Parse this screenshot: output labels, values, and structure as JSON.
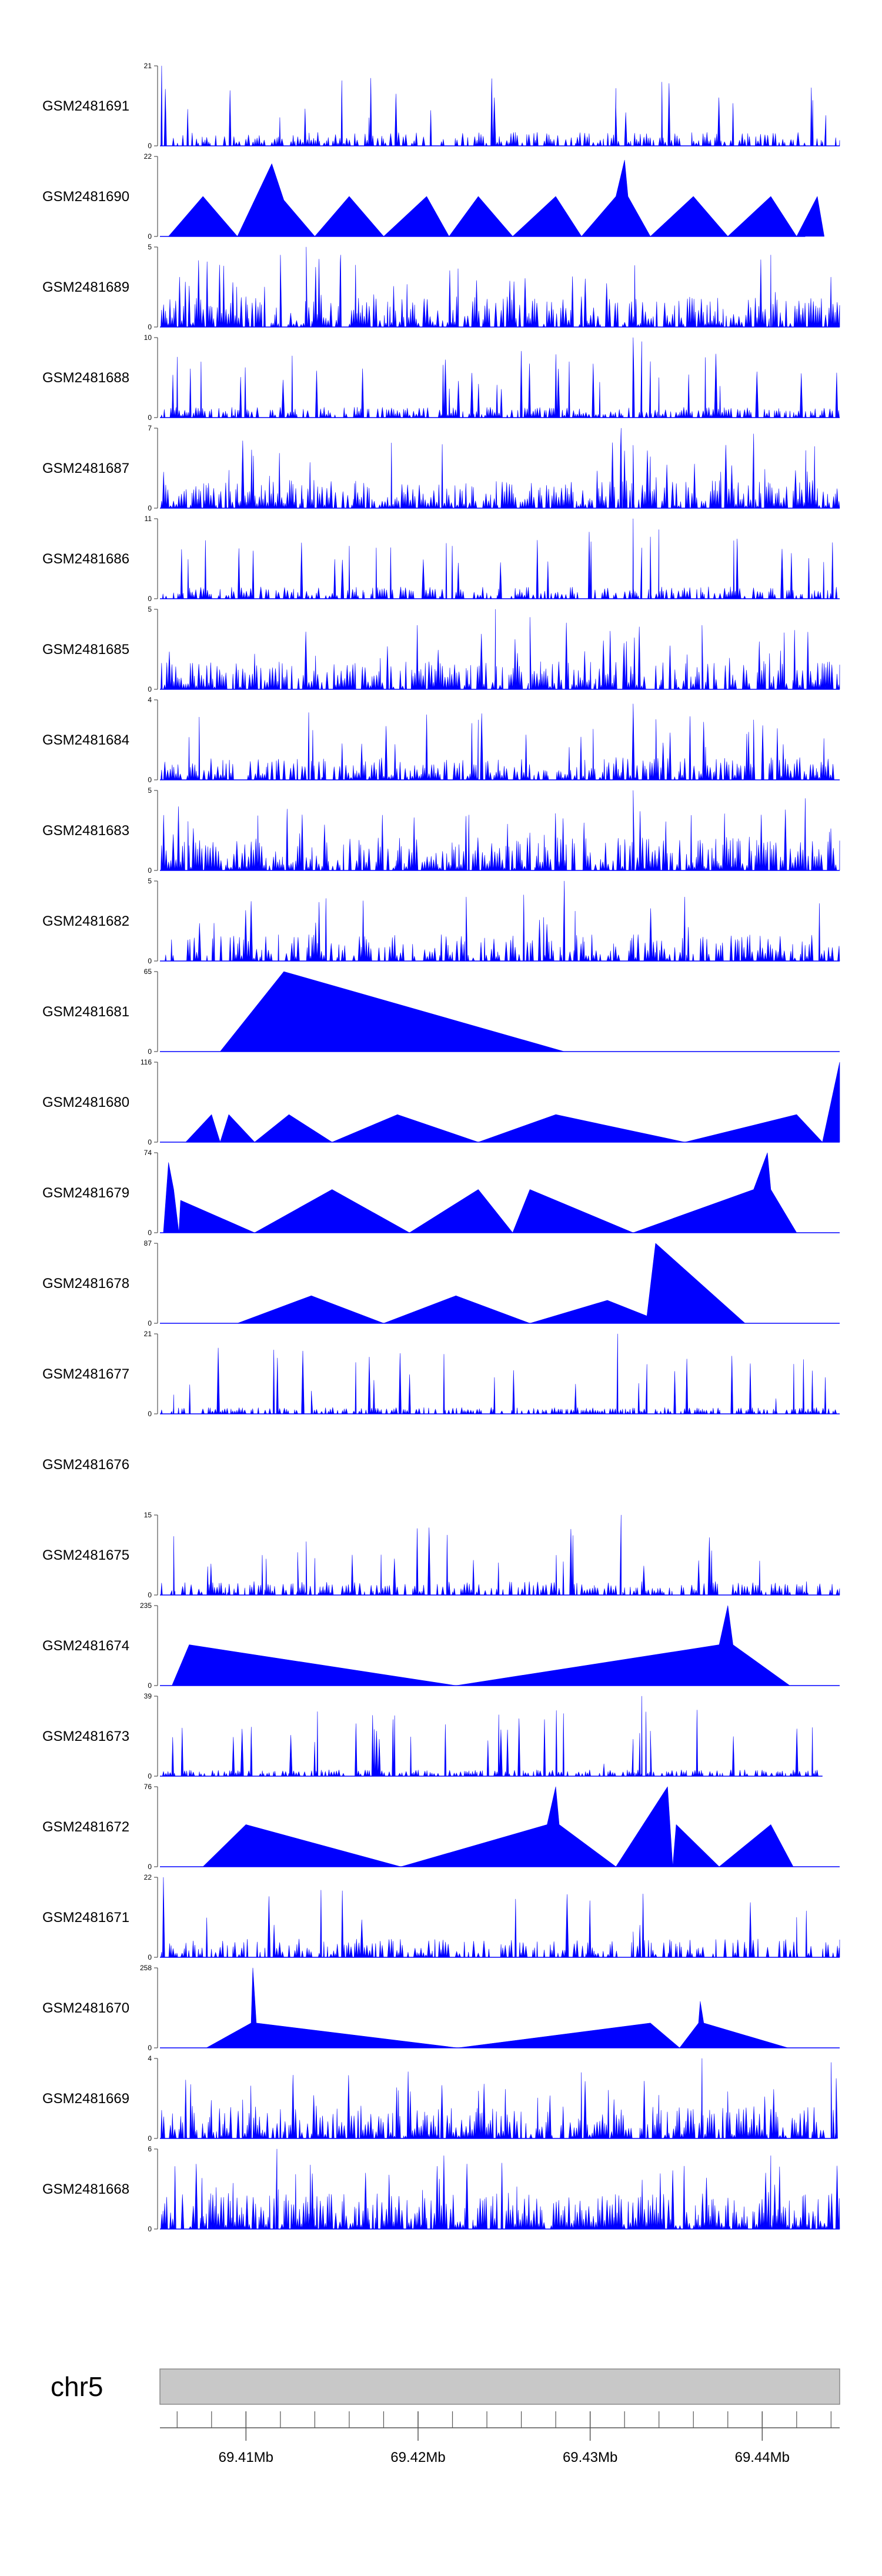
{
  "colors": {
    "signal": "#0000ff",
    "axis": "#555555",
    "ideogram": "#c8c8c8",
    "ideogram_border": "#8a8a8a"
  },
  "chart_data": {
    "type": "area",
    "chromosome": "chr5",
    "x_range_mb": [
      69.405,
      69.4445
    ],
    "x_ticks": [
      {
        "value": 69.41,
        "label": "69.41Mb"
      },
      {
        "value": 69.42,
        "label": "69.42Mb"
      },
      {
        "value": 69.43,
        "label": "69.43Mb"
      },
      {
        "value": 69.44,
        "label": "69.44Mb"
      }
    ],
    "tracks": [
      {
        "name": "GSM2481691",
        "ymax": 21,
        "ylabel_top": "21",
        "ylabel_bottom": "0",
        "style": "dense",
        "seed": 11,
        "peaks": [
          [
            69.4051,
            21
          ],
          [
            69.4315,
            10
          ],
          [
            69.4437,
            8
          ]
        ],
        "base": 0.14,
        "gap": 0.4
      },
      {
        "name": "GSM2481690",
        "ymax": 22,
        "ylabel_top": "22",
        "ylabel_bottom": "0",
        "style": "sparse",
        "points": [
          [
            69.4055,
            0
          ],
          [
            69.4075,
            11
          ],
          [
            69.4095,
            0
          ],
          [
            69.4115,
            20
          ],
          [
            69.4122,
            10
          ],
          [
            69.414,
            0
          ],
          [
            69.416,
            11
          ],
          [
            69.418,
            0
          ],
          [
            69.4205,
            11
          ],
          [
            69.4218,
            0
          ],
          [
            69.4235,
            11
          ],
          [
            69.4255,
            0
          ],
          [
            69.428,
            11
          ],
          [
            69.4295,
            0
          ],
          [
            69.4315,
            11
          ],
          [
            69.432,
            21
          ],
          [
            69.4322,
            11
          ],
          [
            69.4335,
            0
          ],
          [
            69.436,
            11
          ],
          [
            69.438,
            0
          ],
          [
            69.4405,
            11
          ],
          [
            69.442,
            0
          ],
          [
            69.4432,
            11
          ],
          [
            69.4436,
            0
          ]
        ],
        "end": 69.4425
      },
      {
        "name": "GSM2481689",
        "ymax": 5,
        "ylabel_top": "5",
        "ylabel_bottom": "0",
        "style": "dense",
        "seed": 23,
        "peaks": [
          [
            69.4135,
            5
          ],
          [
            69.412,
            4.5
          ],
          [
            69.4155,
            4.5
          ],
          [
            69.4405,
            4.5
          ]
        ],
        "base": 0.35,
        "gap": 0.2
      },
      {
        "name": "GSM2481688",
        "ymax": 10,
        "ylabel_top": "10",
        "ylabel_bottom": "0",
        "style": "dense",
        "seed": 37,
        "peaks": [
          [
            69.4325,
            10
          ],
          [
            69.433,
            9.5
          ],
          [
            69.4335,
            7
          ],
          [
            69.434,
            5
          ]
        ],
        "base": 0.1,
        "gap": 0.35
      },
      {
        "name": "GSM2481687",
        "ymax": 7,
        "ylabel_top": "7",
        "ylabel_bottom": "0",
        "style": "dense",
        "seed": 41,
        "peaks": [
          [
            69.4318,
            7
          ],
          [
            69.4395,
            6.5
          ],
          [
            69.4325,
            5.5
          ],
          [
            69.4335,
            4.5
          ]
        ],
        "base": 0.32,
        "gap": 0.2
      },
      {
        "name": "GSM2481686",
        "ymax": 11,
        "ylabel_top": "11",
        "ylabel_bottom": "0",
        "style": "dense",
        "seed": 53,
        "peaks": [
          [
            69.4325,
            11
          ],
          [
            69.4335,
            8.5
          ],
          [
            69.434,
            9.5
          ],
          [
            69.433,
            7
          ]
        ],
        "base": 0.12,
        "gap": 0.35
      },
      {
        "name": "GSM2481685",
        "ymax": 5,
        "ylabel_top": "5",
        "ylabel_bottom": "0",
        "style": "dense",
        "seed": 61,
        "peaks": [
          [
            69.4245,
            5
          ],
          [
            69.4265,
            4.5
          ],
          [
            69.4365,
            4
          ]
        ],
        "base": 0.32,
        "gap": 0.25
      },
      {
        "name": "GSM2481684",
        "ymax": 4,
        "ylabel_top": "4",
        "ylabel_bottom": "0",
        "style": "dense",
        "seed": 73,
        "peaks": [
          [
            69.4235,
            3
          ],
          [
            69.4325,
            3.8
          ],
          [
            69.4395,
            3
          ]
        ],
        "base": 0.25,
        "gap": 0.3
      },
      {
        "name": "GSM2481683",
        "ymax": 5,
        "ylabel_top": "5",
        "ylabel_bottom": "0",
        "style": "dense",
        "seed": 83,
        "peaks": [
          [
            69.4325,
            5
          ],
          [
            69.4425,
            4.5
          ]
        ],
        "base": 0.38,
        "gap": 0.2
      },
      {
        "name": "GSM2481682",
        "ymax": 5,
        "ylabel_top": "5",
        "ylabel_bottom": "0",
        "style": "dense",
        "seed": 97,
        "peaks": [
          [
            69.4285,
            5
          ],
          [
            69.4228,
            4
          ],
          [
            69.4355,
            4
          ]
        ],
        "base": 0.3,
        "gap": 0.3
      },
      {
        "name": "GSM2481681",
        "ymax": 65,
        "ylabel_top": "65",
        "ylabel_bottom": "0",
        "style": "sparse",
        "points": [
          [
            69.4085,
            0
          ],
          [
            69.4122,
            65
          ],
          [
            69.4285,
            0
          ]
        ]
      },
      {
        "name": "GSM2481680",
        "ymax": 116,
        "ylabel_top": "116",
        "ylabel_bottom": "0",
        "style": "sparse",
        "points": [
          [
            69.4065,
            0
          ],
          [
            69.408,
            40
          ],
          [
            69.4085,
            0
          ],
          [
            69.409,
            40
          ],
          [
            69.4105,
            0
          ],
          [
            69.4125,
            40
          ],
          [
            69.415,
            0
          ],
          [
            69.4188,
            40
          ],
          [
            69.4235,
            0
          ],
          [
            69.428,
            40
          ],
          [
            69.4355,
            0
          ],
          [
            69.442,
            40
          ],
          [
            69.4435,
            0
          ],
          [
            69.4445,
            116
          ]
        ]
      },
      {
        "name": "GSM2481679",
        "ymax": 74,
        "ylabel_top": "74",
        "ylabel_bottom": "0",
        "style": "sparse",
        "points": [
          [
            69.4052,
            0
          ],
          [
            69.4055,
            65
          ],
          [
            69.4058,
            40
          ],
          [
            69.4061,
            0
          ],
          [
            69.4062,
            30
          ],
          [
            69.4105,
            0
          ],
          [
            69.415,
            40
          ],
          [
            69.4195,
            0
          ],
          [
            69.4235,
            40
          ],
          [
            69.4255,
            0
          ],
          [
            69.4265,
            40
          ],
          [
            69.4325,
            0
          ],
          [
            69.4395,
            40
          ],
          [
            69.4403,
            74
          ],
          [
            69.4405,
            40
          ],
          [
            69.442,
            0
          ]
        ]
      },
      {
        "name": "GSM2481678",
        "ymax": 87,
        "ylabel_top": "87",
        "ylabel_bottom": "0",
        "style": "sparse",
        "points": [
          [
            69.4095,
            0
          ],
          [
            69.4138,
            30
          ],
          [
            69.418,
            0
          ],
          [
            69.4222,
            30
          ],
          [
            69.4265,
            0
          ],
          [
            69.431,
            25
          ],
          [
            69.4333,
            8
          ],
          [
            69.4338,
            87
          ],
          [
            69.439,
            0
          ]
        ]
      },
      {
        "name": "GSM2481677",
        "ymax": 21,
        "ylabel_top": "21",
        "ylabel_bottom": "0",
        "style": "dense",
        "seed": 101,
        "peaks": [
          [
            69.4316,
            21
          ],
          [
            69.4333,
            13
          ],
          [
            69.4058,
            5
          ],
          [
            69.4138,
            6
          ],
          [
            69.4408,
            4
          ]
        ],
        "base": 0.05,
        "gap": 0.4
      },
      {
        "name": "GSM2481676",
        "style": "empty"
      },
      {
        "name": "GSM2481675",
        "ymax": 15,
        "ylabel_top": "15",
        "ylabel_bottom": "0",
        "style": "dense",
        "seed": 113,
        "peaks": [
          [
            69.4318,
            15
          ],
          [
            69.4058,
            11
          ],
          [
            69.4135,
            10
          ],
          [
            69.413,
            8
          ]
        ],
        "base": 0.14,
        "gap": 0.4
      },
      {
        "name": "GSM2481674",
        "ymax": 235,
        "ylabel_top": "235",
        "ylabel_bottom": "0",
        "style": "sparse",
        "points": [
          [
            69.4057,
            0
          ],
          [
            69.4067,
            120
          ],
          [
            69.4222,
            0
          ],
          [
            69.4375,
            120
          ],
          [
            69.438,
            235
          ],
          [
            69.4383,
            120
          ],
          [
            69.4416,
            0
          ]
        ]
      },
      {
        "name": "GSM2481673",
        "ymax": 39,
        "ylabel_top": "39",
        "ylabel_bottom": "0",
        "style": "dense",
        "seed": 131,
        "peaks": [
          [
            69.433,
            39
          ],
          [
            69.4325,
            18
          ],
          [
            69.4335,
            22
          ],
          [
            69.4308,
            6
          ]
        ],
        "base": 0.05,
        "gap": 0.4,
        "end": 69.4435
      },
      {
        "name": "GSM2481672",
        "ymax": 76,
        "ylabel_top": "76",
        "ylabel_bottom": "0",
        "style": "sparse",
        "points": [
          [
            69.4075,
            0
          ],
          [
            69.41,
            40
          ],
          [
            69.419,
            0
          ],
          [
            69.4275,
            40
          ],
          [
            69.428,
            76
          ],
          [
            69.4282,
            40
          ],
          [
            69.4315,
            0
          ],
          [
            69.4345,
            76
          ],
          [
            69.4348,
            0
          ],
          [
            69.435,
            40
          ],
          [
            69.4375,
            0
          ],
          [
            69.4405,
            40
          ],
          [
            69.4418,
            0
          ]
        ]
      },
      {
        "name": "GSM2481671",
        "ymax": 22,
        "ylabel_top": "22",
        "ylabel_bottom": "0",
        "style": "dense",
        "seed": 149,
        "peaks": [
          [
            69.4052,
            22
          ],
          [
            69.442,
            11
          ],
          [
            69.4325,
            7
          ]
        ],
        "base": 0.2,
        "gap": 0.45
      },
      {
        "name": "GSM2481670",
        "ymax": 258,
        "ylabel_top": "258",
        "ylabel_bottom": "0",
        "style": "sparse",
        "points": [
          [
            69.4077,
            0
          ],
          [
            69.4103,
            80
          ],
          [
            69.4104,
            258
          ],
          [
            69.4106,
            80
          ],
          [
            69.4223,
            0
          ],
          [
            69.4335,
            80
          ],
          [
            69.4352,
            0
          ],
          [
            69.4363,
            80
          ],
          [
            69.4364,
            150
          ],
          [
            69.4366,
            80
          ],
          [
            69.4415,
            0
          ]
        ]
      },
      {
        "name": "GSM2481669",
        "ymax": 4,
        "ylabel_top": "4",
        "ylabel_bottom": "0",
        "style": "dense",
        "seed": 167,
        "peaks": [
          [
            69.4365,
            4
          ],
          [
            69.444,
            3.8
          ],
          [
            69.4443,
            3
          ]
        ],
        "base": 0.38,
        "gap": 0.2,
        "end": 69.4443
      },
      {
        "name": "GSM2481668",
        "ymax": 6,
        "ylabel_top": "6",
        "ylabel_bottom": "0",
        "style": "dense",
        "seed": 181,
        "peaks": [
          [
            69.4118,
            6
          ],
          [
            69.4215,
            5.5
          ],
          [
            69.4405,
            5.5
          ]
        ],
        "base": 0.42,
        "gap": 0.15
      }
    ]
  }
}
